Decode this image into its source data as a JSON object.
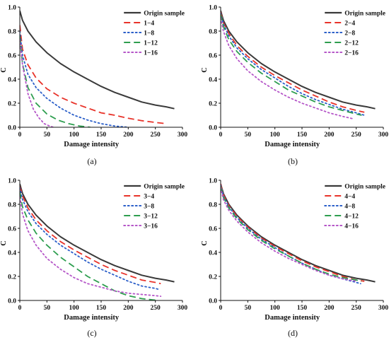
{
  "chart_data": [
    {
      "type": "line",
      "panel_label": "(a)",
      "xlabel": "Damage intensity",
      "ylabel": "C",
      "xlim": [
        0,
        300
      ],
      "ylim": [
        0,
        1.0
      ],
      "xticks": [
        "0",
        "50",
        "100",
        "150",
        "200",
        "250",
        "300"
      ],
      "yticks": [
        "0.0",
        "0.2",
        "0.4",
        "0.6",
        "0.8",
        "1.0"
      ],
      "legend_position": "top-right",
      "series": [
        {
          "name": "Origin sample",
          "style": "solid",
          "color": "#3a3a3a",
          "x": [
            0,
            5,
            15,
            30,
            50,
            75,
            100,
            125,
            150,
            175,
            200,
            225,
            250,
            270,
            285
          ],
          "y": [
            0.97,
            0.89,
            0.8,
            0.71,
            0.62,
            0.53,
            0.46,
            0.4,
            0.34,
            0.29,
            0.25,
            0.21,
            0.185,
            0.17,
            0.155
          ]
        },
        {
          "name": "1−4",
          "style": "dashed",
          "color": "#e8332a",
          "x": [
            0,
            5,
            15,
            30,
            50,
            75,
            100,
            125,
            150,
            175,
            200,
            225,
            250,
            270
          ],
          "y": [
            0.85,
            0.65,
            0.52,
            0.41,
            0.32,
            0.25,
            0.2,
            0.16,
            0.12,
            0.1,
            0.075,
            0.055,
            0.04,
            0.03
          ]
        },
        {
          "name": "1−8",
          "style": "dotted",
          "color": "#2b5fc9",
          "x": [
            0,
            5,
            15,
            30,
            50,
            75,
            100,
            125,
            150,
            175,
            200
          ],
          "y": [
            0.8,
            0.6,
            0.44,
            0.33,
            0.24,
            0.16,
            0.1,
            0.06,
            0.03,
            0.01,
            0.0
          ]
        },
        {
          "name": "1−12",
          "style": "dashed",
          "color": "#2e9e4f",
          "x": [
            0,
            5,
            15,
            30,
            50,
            70,
            90,
            110,
            130
          ],
          "y": [
            0.76,
            0.53,
            0.33,
            0.2,
            0.11,
            0.06,
            0.03,
            0.01,
            0.0
          ]
        },
        {
          "name": "1−16",
          "style": "dotted",
          "color": "#b556c8",
          "x": [
            0,
            5,
            15,
            25,
            35,
            45,
            55,
            62
          ],
          "y": [
            0.73,
            0.52,
            0.28,
            0.15,
            0.08,
            0.03,
            0.01,
            0.0
          ]
        }
      ]
    },
    {
      "type": "line",
      "panel_label": "(b)",
      "xlabel": "Damage intensity",
      "ylabel": "C",
      "xlim": [
        0,
        300
      ],
      "ylim": [
        0,
        1.0
      ],
      "xticks": [
        "0",
        "50",
        "100",
        "150",
        "200",
        "250",
        "300"
      ],
      "yticks": [
        "0.0",
        "0.2",
        "0.4",
        "0.6",
        "0.8",
        "1.0"
      ],
      "legend_position": "top-right",
      "series": [
        {
          "name": "Origin sample",
          "style": "solid",
          "color": "#3a3a3a",
          "x": [
            0,
            5,
            15,
            30,
            50,
            75,
            100,
            125,
            150,
            175,
            200,
            225,
            250,
            270,
            285
          ],
          "y": [
            0.97,
            0.89,
            0.8,
            0.71,
            0.62,
            0.53,
            0.46,
            0.4,
            0.34,
            0.29,
            0.25,
            0.21,
            0.185,
            0.17,
            0.155
          ]
        },
        {
          "name": "2−4",
          "style": "dashed",
          "color": "#e8332a",
          "x": [
            0,
            5,
            15,
            30,
            50,
            75,
            100,
            125,
            150,
            175,
            200,
            225,
            250,
            265
          ],
          "y": [
            0.96,
            0.87,
            0.78,
            0.68,
            0.59,
            0.5,
            0.43,
            0.37,
            0.31,
            0.26,
            0.21,
            0.17,
            0.14,
            0.125
          ]
        },
        {
          "name": "2−8",
          "style": "dotted",
          "color": "#2b5fc9",
          "x": [
            0,
            5,
            15,
            30,
            50,
            75,
            100,
            125,
            150,
            175,
            200,
            225,
            250,
            265
          ],
          "y": [
            0.95,
            0.86,
            0.76,
            0.66,
            0.57,
            0.48,
            0.41,
            0.34,
            0.28,
            0.23,
            0.19,
            0.15,
            0.12,
            0.1
          ]
        },
        {
          "name": "2−12",
          "style": "dashed",
          "color": "#2e9e4f",
          "x": [
            0,
            5,
            15,
            30,
            50,
            75,
            100,
            125,
            150,
            175,
            200,
            225,
            250,
            260
          ],
          "y": [
            0.94,
            0.84,
            0.73,
            0.63,
            0.54,
            0.45,
            0.38,
            0.31,
            0.26,
            0.21,
            0.17,
            0.14,
            0.11,
            0.1
          ]
        },
        {
          "name": "2−16",
          "style": "dotted",
          "color": "#b556c8",
          "x": [
            0,
            5,
            15,
            30,
            50,
            75,
            100,
            125,
            150,
            175,
            200,
            225,
            245
          ],
          "y": [
            0.91,
            0.8,
            0.68,
            0.57,
            0.47,
            0.38,
            0.31,
            0.25,
            0.2,
            0.16,
            0.12,
            0.09,
            0.07
          ]
        }
      ]
    },
    {
      "type": "line",
      "panel_label": "(c)",
      "xlabel": "Damage intensity",
      "ylabel": "C",
      "xlim": [
        0,
        300
      ],
      "ylim": [
        0,
        1.0
      ],
      "xticks": [
        "0",
        "50",
        "100",
        "150",
        "200",
        "250",
        "300"
      ],
      "yticks": [
        "0.0",
        "0.2",
        "0.4",
        "0.6",
        "0.8",
        "1.0"
      ],
      "legend_position": "top-right",
      "series": [
        {
          "name": "Origin sample",
          "style": "solid",
          "color": "#3a3a3a",
          "x": [
            0,
            5,
            15,
            30,
            50,
            75,
            100,
            125,
            150,
            175,
            200,
            225,
            250,
            270,
            285
          ],
          "y": [
            0.97,
            0.89,
            0.8,
            0.71,
            0.62,
            0.53,
            0.46,
            0.4,
            0.34,
            0.29,
            0.25,
            0.21,
            0.185,
            0.17,
            0.155
          ]
        },
        {
          "name": "3−4",
          "style": "dashed",
          "color": "#e8332a",
          "x": [
            0,
            5,
            15,
            30,
            50,
            75,
            100,
            125,
            150,
            175,
            200,
            225,
            250,
            260
          ],
          "y": [
            0.95,
            0.87,
            0.77,
            0.67,
            0.58,
            0.49,
            0.42,
            0.36,
            0.3,
            0.25,
            0.21,
            0.17,
            0.15,
            0.14
          ]
        },
        {
          "name": "3−8",
          "style": "dotted",
          "color": "#2b5fc9",
          "x": [
            0,
            5,
            15,
            30,
            50,
            75,
            100,
            125,
            150,
            175,
            200,
            225,
            250,
            258
          ],
          "y": [
            0.94,
            0.84,
            0.74,
            0.64,
            0.55,
            0.46,
            0.39,
            0.32,
            0.26,
            0.21,
            0.16,
            0.12,
            0.1,
            0.09
          ]
        },
        {
          "name": "3−12",
          "style": "dashed",
          "color": "#2e9e4f",
          "x": [
            0,
            5,
            15,
            30,
            50,
            75,
            100,
            125,
            150,
            175,
            200,
            225,
            245,
            255
          ],
          "y": [
            0.9,
            0.78,
            0.67,
            0.56,
            0.46,
            0.36,
            0.28,
            0.2,
            0.14,
            0.08,
            0.04,
            0.015,
            0.005,
            0.0
          ]
        },
        {
          "name": "3−16",
          "style": "dotted",
          "color": "#b556c8",
          "x": [
            0,
            5,
            15,
            30,
            50,
            75,
            100,
            125,
            150,
            175,
            200,
            225,
            250,
            260
          ],
          "y": [
            0.86,
            0.72,
            0.58,
            0.46,
            0.35,
            0.26,
            0.19,
            0.14,
            0.11,
            0.08,
            0.06,
            0.05,
            0.04,
            0.035
          ]
        }
      ]
    },
    {
      "type": "line",
      "panel_label": "(d)",
      "xlabel": "Damage intensity",
      "ylabel": "C",
      "xlim": [
        0,
        300
      ],
      "ylim": [
        0,
        1.0
      ],
      "xticks": [
        "0",
        "50",
        "100",
        "150",
        "200",
        "250",
        "300"
      ],
      "yticks": [
        "0.0",
        "0.2",
        "0.4",
        "0.6",
        "0.8",
        "1.0"
      ],
      "legend_position": "top-right",
      "series": [
        {
          "name": "Origin sample",
          "style": "solid",
          "color": "#3a3a3a",
          "x": [
            0,
            5,
            15,
            30,
            50,
            75,
            100,
            125,
            150,
            175,
            200,
            225,
            250,
            270,
            285
          ],
          "y": [
            0.97,
            0.89,
            0.8,
            0.71,
            0.62,
            0.53,
            0.46,
            0.4,
            0.34,
            0.29,
            0.25,
            0.21,
            0.185,
            0.17,
            0.155
          ]
        },
        {
          "name": "4−4",
          "style": "dashed",
          "color": "#e8332a",
          "x": [
            0,
            5,
            15,
            30,
            50,
            75,
            100,
            125,
            150,
            175,
            200,
            225,
            250,
            265
          ],
          "y": [
            0.97,
            0.88,
            0.79,
            0.7,
            0.61,
            0.52,
            0.45,
            0.39,
            0.33,
            0.28,
            0.24,
            0.2,
            0.17,
            0.16
          ]
        },
        {
          "name": "4−8",
          "style": "dotted",
          "color": "#2b5fc9",
          "x": [
            0,
            5,
            15,
            30,
            50,
            75,
            100,
            125,
            150,
            175,
            200,
            225,
            250,
            258
          ],
          "y": [
            0.96,
            0.87,
            0.78,
            0.69,
            0.6,
            0.51,
            0.44,
            0.37,
            0.31,
            0.26,
            0.21,
            0.18,
            0.15,
            0.14
          ]
        },
        {
          "name": "4−12",
          "style": "dashed",
          "color": "#2e9e4f",
          "x": [
            0,
            5,
            15,
            30,
            50,
            75,
            100,
            125,
            150,
            175,
            200,
            225,
            250,
            260
          ],
          "y": [
            0.95,
            0.86,
            0.77,
            0.68,
            0.59,
            0.5,
            0.43,
            0.37,
            0.31,
            0.26,
            0.22,
            0.19,
            0.17,
            0.16
          ]
        },
        {
          "name": "4−16",
          "style": "dotted",
          "color": "#b556c8",
          "x": [
            0,
            5,
            15,
            30,
            50,
            75,
            100,
            125,
            150,
            175,
            200,
            225,
            250
          ],
          "y": [
            0.94,
            0.84,
            0.75,
            0.66,
            0.57,
            0.48,
            0.41,
            0.35,
            0.3,
            0.25,
            0.21,
            0.18,
            0.16
          ]
        }
      ]
    }
  ]
}
